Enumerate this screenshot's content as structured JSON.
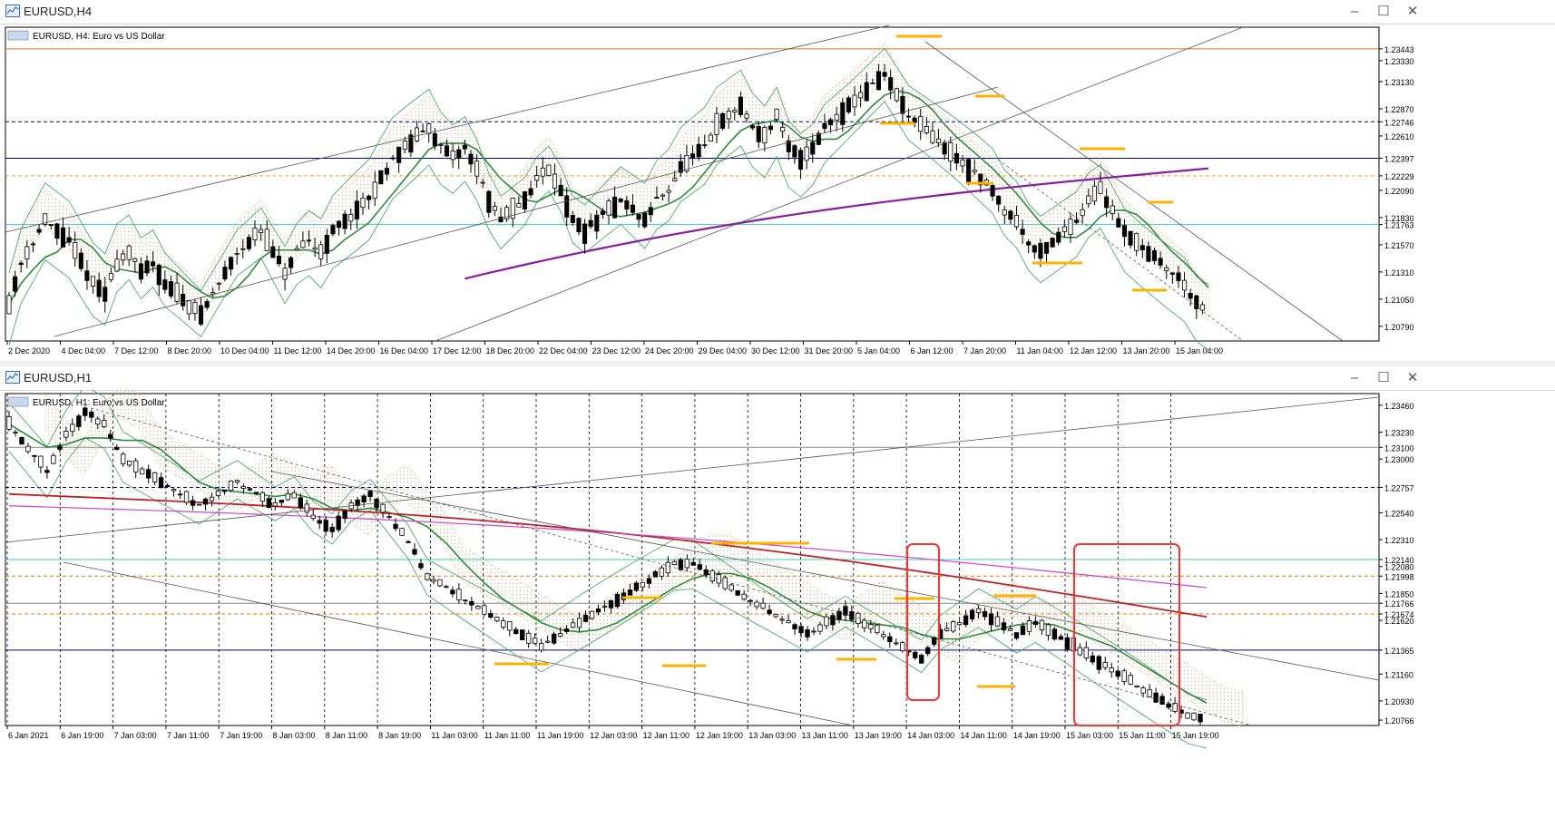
{
  "colors": {
    "bull": "#ffffff",
    "bear": "#000000",
    "ma_green": "#2e8b3a",
    "bb": "#3aa060",
    "sma200_purple": "#8a1aa8",
    "ma_red": "#c0202a",
    "ma_magenta": "#cc44cc",
    "cloud": "#d9a57a",
    "orange_mark": "#ffb000",
    "red_box": "#ff3030",
    "cyan_line": "#40c8b8",
    "orange_line": "#f0a030",
    "price_blue": "#000a7a",
    "price_orange": "#e07a10",
    "price_teal": "#40c8b8"
  },
  "h4": {
    "window_title": "EURUSD,H4",
    "chart_label": "EURUSD, H4:  Euro vs US Dollar",
    "price_labels": [
      "1.23443",
      "1.23330",
      "1.23130",
      "1.22870",
      "1.22746",
      "1.22610",
      "1.22397",
      "1.22229",
      "1.22090",
      "1.21830",
      "1.21763",
      "1.21570",
      "1.21310",
      "1.21050",
      "1.20790"
    ],
    "time_labels": [
      "2 Dec 2020",
      "4 Dec 04:00",
      "7 Dec 12:00",
      "8 Dec 20:00",
      "10 Dec 04:00",
      "11 Dec 12:00",
      "14 Dec 20:00",
      "16 Dec 04:00",
      "17 Dec 12:00",
      "18 Dec 20:00",
      "22 Dec 04:00",
      "23 Dec 12:00",
      "24 Dec 20:00",
      "29 Dec 04:00",
      "30 Dec 12:00",
      "31 Dec 20:00",
      "5 Jan 04:00",
      "6 Jan 12:00",
      "7 Jan 20:00",
      "11 Jan 04:00",
      "12 Jan 12:00",
      "13 Jan 20:00",
      "15 Jan 04:00"
    ]
  },
  "h1": {
    "window_title": "EURUSD,H1",
    "chart_label": "EURUSD, H1:  Euro vs US Dollar",
    "price_labels": [
      "1.23460",
      "1.23230",
      "1.23100",
      "1.23000",
      "1.22757",
      "1.22540",
      "1.22310",
      "1.22140",
      "1.22080",
      "1.21998",
      "1.21850",
      "1.21766",
      "1.21674",
      "1.21620",
      "1.21365",
      "1.21160",
      "1.20930",
      "1.20766"
    ],
    "time_labels": [
      "6 Jan 2021",
      "6 Jan 19:00",
      "7 Jan 03:00",
      "7 Jan 11:00",
      "7 Jan 19:00",
      "8 Jan 03:00",
      "8 Jan 11:00",
      "8 Jan 19:00",
      "11 Jan 03:00",
      "11 Jan 11:00",
      "11 Jan 19:00",
      "12 Jan 03:00",
      "12 Jan 11:00",
      "12 Jan 19:00",
      "13 Jan 03:00",
      "13 Jan 11:00",
      "13 Jan 19:00",
      "14 Jan 03:00",
      "14 Jan 11:00",
      "14 Jan 19:00",
      "15 Jan 03:00",
      "15 Jan 11:00",
      "15 Jan 19:00"
    ]
  },
  "chart_data": [
    {
      "type": "candlestick",
      "title": "EURUSD, H4:  Euro vs US Dollar",
      "timeframe": "H4",
      "ylim": [
        1.2065,
        1.2365
      ],
      "x_tick_labels": [
        "2 Dec 2020",
        "4 Dec 04:00",
        "7 Dec 12:00",
        "8 Dec 20:00",
        "10 Dec 04:00",
        "11 Dec 12:00",
        "14 Dec 20:00",
        "16 Dec 04:00",
        "17 Dec 12:00",
        "18 Dec 20:00",
        "22 Dec 04:00",
        "23 Dec 12:00",
        "24 Dec 20:00",
        "29 Dec 04:00",
        "30 Dec 12:00",
        "31 Dec 20:00",
        "5 Jan 04:00",
        "6 Jan 12:00",
        "7 Jan 20:00",
        "11 Jan 04:00",
        "12 Jan 12:00",
        "13 Jan 20:00",
        "15 Jan 04:00"
      ],
      "close_path": [
        1.21,
        1.214,
        1.216,
        1.218,
        1.217,
        1.216,
        1.214,
        1.212,
        1.211,
        1.214,
        1.215,
        1.213,
        1.214,
        1.212,
        1.211,
        1.21,
        1.209,
        1.211,
        1.213,
        1.215,
        1.216,
        1.217,
        1.215,
        1.213,
        1.215,
        1.216,
        1.215,
        1.217,
        1.218,
        1.219,
        1.22,
        1.222,
        1.224,
        1.225,
        1.226,
        1.227,
        1.225,
        1.224,
        1.225,
        1.223,
        1.22,
        1.218,
        1.219,
        1.22,
        1.222,
        1.223,
        1.221,
        1.218,
        1.217,
        1.218,
        1.219,
        1.22,
        1.219,
        1.218,
        1.22,
        1.221,
        1.223,
        1.224,
        1.225,
        1.227,
        1.228,
        1.229,
        1.227,
        1.226,
        1.228,
        1.225,
        1.224,
        1.225,
        1.227,
        1.228,
        1.229,
        1.23,
        1.231,
        1.232,
        1.23,
        1.228,
        1.227,
        1.226,
        1.225,
        1.224,
        1.223,
        1.222,
        1.221,
        1.219,
        1.218,
        1.216,
        1.215,
        1.216,
        1.217,
        1.218,
        1.22,
        1.221,
        1.219,
        1.217,
        1.216,
        1.215,
        1.214,
        1.213,
        1.212,
        1.21,
        1.209
      ],
      "horizontal_levels": [
        1.23443,
        1.22746,
        1.22397,
        1.22229,
        1.21763
      ],
      "indicators": [
        "Moving average (green)",
        "Bollinger bands (green)",
        "SMA (purple)",
        "Ichimoku cloud (orange dotted)"
      ]
    },
    {
      "type": "candlestick",
      "title": "EURUSD, H1:  Euro vs US Dollar",
      "timeframe": "H1",
      "ylim": [
        1.2072,
        1.2356
      ],
      "x_tick_labels": [
        "6 Jan 2021",
        "6 Jan 19:00",
        "7 Jan 03:00",
        "7 Jan 11:00",
        "7 Jan 19:00",
        "8 Jan 03:00",
        "8 Jan 11:00",
        "8 Jan 19:00",
        "11 Jan 03:00",
        "11 Jan 11:00",
        "11 Jan 19:00",
        "12 Jan 03:00",
        "12 Jan 11:00",
        "12 Jan 19:00",
        "13 Jan 03:00",
        "13 Jan 11:00",
        "13 Jan 19:00",
        "14 Jan 03:00",
        "14 Jan 11:00",
        "14 Jan 19:00",
        "15 Jan 03:00",
        "15 Jan 11:00",
        "15 Jan 19:00"
      ],
      "close_path": [
        1.233,
        1.231,
        1.229,
        1.232,
        1.234,
        1.233,
        1.23,
        1.229,
        1.228,
        1.227,
        1.226,
        1.227,
        1.228,
        1.227,
        1.226,
        1.227,
        1.225,
        1.224,
        1.226,
        1.227,
        1.225,
        1.223,
        1.22,
        1.219,
        1.218,
        1.217,
        1.216,
        1.215,
        1.214,
        1.215,
        1.216,
        1.217,
        1.218,
        1.219,
        1.22,
        1.221,
        1.221,
        1.22,
        1.219,
        1.218,
        1.217,
        1.216,
        1.215,
        1.216,
        1.217,
        1.216,
        1.215,
        1.214,
        1.213,
        1.215,
        1.216,
        1.217,
        1.216,
        1.215,
        1.216,
        1.215,
        1.214,
        1.213,
        1.212,
        1.211,
        1.21,
        1.209,
        1.208,
        1.2076
      ],
      "horizontal_levels": [
        1.231,
        1.22757,
        1.2214,
        1.21998,
        1.21766,
        1.21674,
        1.21365
      ],
      "indicators": [
        "Moving average (green)",
        "Bollinger bands (green)",
        "Moving average (red)",
        "Moving average (magenta)",
        "Ichimoku cloud (orange dotted)"
      ]
    }
  ]
}
